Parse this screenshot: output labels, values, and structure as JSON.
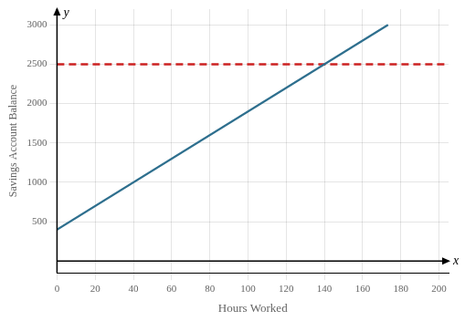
{
  "chart_data": {
    "type": "line",
    "xlabel": "Hours Worked",
    "ylabel": "Savings Account Balance",
    "series": [
      {
        "x": [
          0,
          173.33
        ],
        "values": [
          400,
          2999.95
        ],
        "color": "#2e6f8e",
        "line_style": "solid"
      },
      {
        "x": [
          0,
          205
        ],
        "values": [
          2500,
          2500
        ],
        "color": "#cc2222",
        "line_style": "dashed"
      }
    ],
    "annotations": [
      {
        "text": "x",
        "x": 205,
        "y": 0
      },
      {
        "text": "y",
        "x": 0,
        "y": 3150
      }
    ],
    "xlim": [
      0,
      205
    ],
    "ylim": [
      -150,
      3200
    ],
    "xticks": [
      0,
      20,
      40,
      60,
      80,
      100,
      120,
      140,
      160,
      180,
      200
    ],
    "yticks": [
      500,
      1000,
      1500,
      2000,
      2500,
      3000
    ],
    "grid": true
  }
}
